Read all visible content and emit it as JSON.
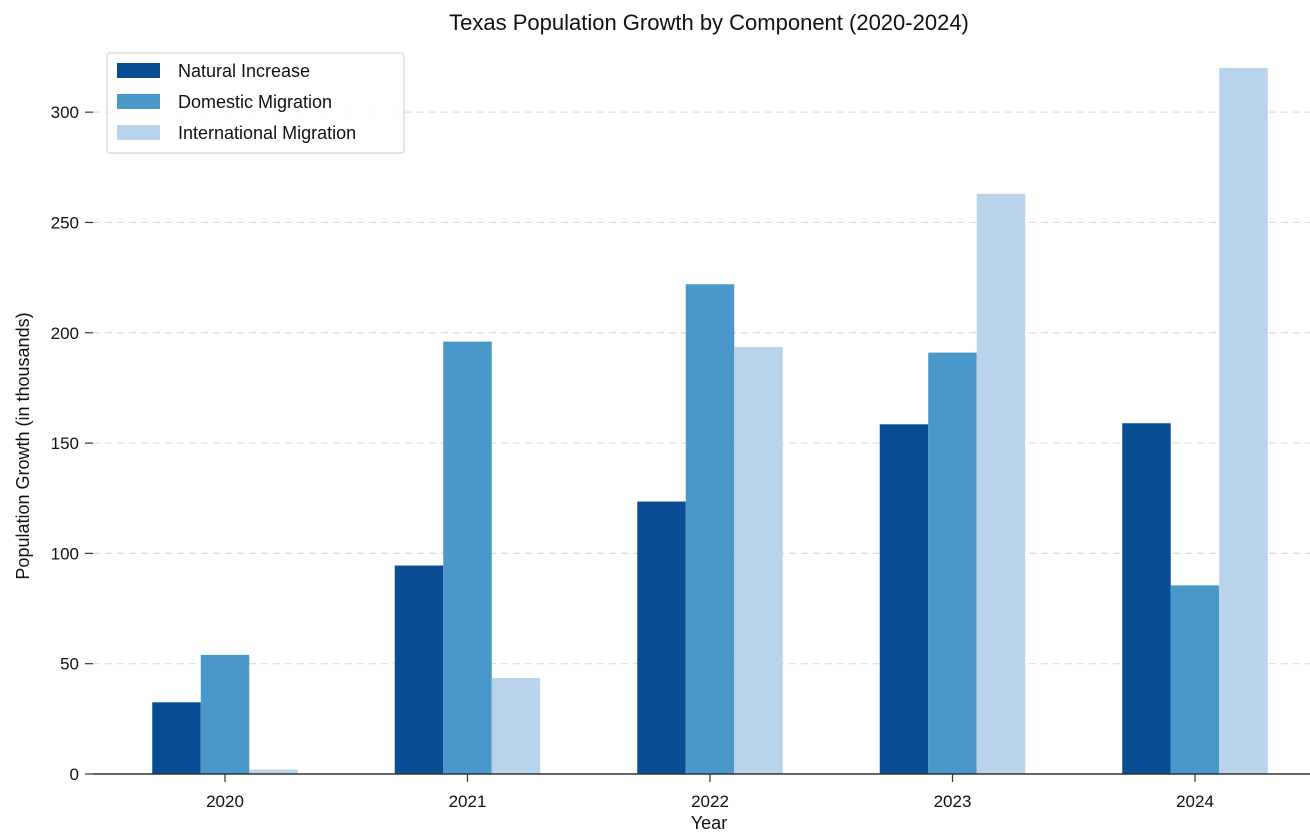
{
  "chart_data": {
    "type": "bar",
    "title": "Texas Population Growth by Component (2020-2024)",
    "xlabel": "Year",
    "ylabel": "Population Growth (in thousands)",
    "categories": [
      "2020",
      "2021",
      "2022",
      "2023",
      "2024"
    ],
    "series": [
      {
        "name": "Natural Increase",
        "color": "#084c94",
        "values": [
          32.5,
          94.5,
          123.5,
          158.5,
          159
        ]
      },
      {
        "name": "Domestic Migration",
        "color": "#4a98c9",
        "values": [
          54,
          196,
          222,
          191,
          85.5
        ]
      },
      {
        "name": "International Migration",
        "color": "#b9d4ea",
        "values": [
          2,
          43.5,
          193.5,
          263,
          320
        ]
      }
    ],
    "ylim": [
      0,
      325
    ],
    "yticks": [
      "0",
      "50",
      "100",
      "150",
      "200",
      "250",
      "300"
    ],
    "grid": "horizontal-dashed",
    "legend": "top-left"
  }
}
